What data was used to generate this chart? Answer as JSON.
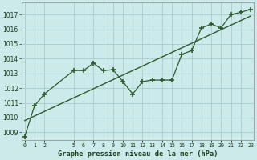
{
  "title": "Graphe pression niveau de la mer (hPa)",
  "bg_color": "#cceaea",
  "grid_color": "#aacccc",
  "line_color": "#2d5a2d",
  "ylim": [
    1008.5,
    1017.8
  ],
  "yticks": [
    1009,
    1010,
    1011,
    1012,
    1013,
    1014,
    1015,
    1016,
    1017
  ],
  "xlim": [
    -0.3,
    23.3
  ],
  "xtick_positions": [
    0,
    1,
    2,
    5,
    6,
    7,
    8,
    9,
    10,
    11,
    12,
    13,
    14,
    15,
    16,
    17,
    18,
    19,
    20,
    21,
    22,
    23
  ],
  "xtick_labels": [
    "0",
    "1",
    "2",
    "5",
    "6",
    "7",
    "8",
    "9",
    "10",
    "11",
    "12",
    "13",
    "14",
    "15",
    "16",
    "17",
    "18",
    "19",
    "20",
    "21",
    "22",
    "23"
  ],
  "hours": [
    0,
    1,
    2,
    5,
    6,
    7,
    8,
    9,
    10,
    11,
    12,
    13,
    14,
    15,
    16,
    17,
    18,
    19,
    20,
    21,
    22,
    23
  ],
  "pressure": [
    1008.7,
    1010.8,
    1011.6,
    1013.2,
    1013.2,
    1013.7,
    1013.2,
    1013.25,
    1012.45,
    1011.6,
    1012.45,
    1012.55,
    1012.55,
    1012.55,
    1014.3,
    1014.55,
    1016.1,
    1016.35,
    1016.1,
    1017.0,
    1017.15,
    1017.35
  ],
  "trend_x": [
    0,
    23
  ],
  "trend_y": [
    1009.8,
    1016.9
  ]
}
